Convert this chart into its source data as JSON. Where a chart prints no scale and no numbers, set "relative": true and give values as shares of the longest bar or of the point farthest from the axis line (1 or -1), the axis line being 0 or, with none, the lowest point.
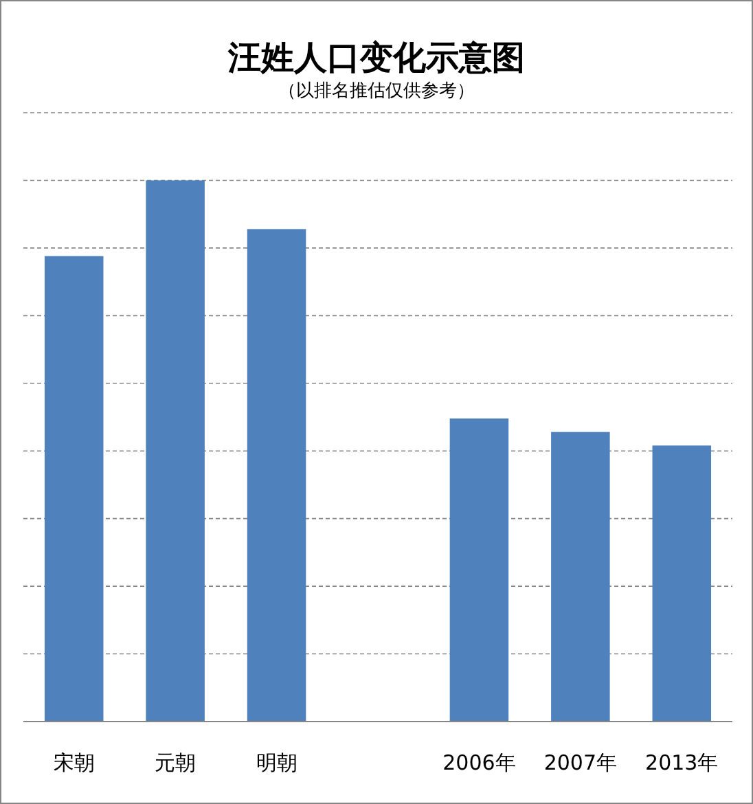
{
  "chart_data": {
    "type": "bar",
    "title": "汪姓人口变化示意图",
    "subtitle": "（以排名推估仅供参考）",
    "categories": [
      "宋朝",
      "元朝",
      "明朝",
      null,
      "2006年",
      "2007年",
      "2013年"
    ],
    "values": [
      0.86,
      1,
      0.91,
      null,
      0.56,
      0.535,
      0.51
    ],
    "color": "#4f81bd",
    "relative": true,
    "grid": "y"
  }
}
